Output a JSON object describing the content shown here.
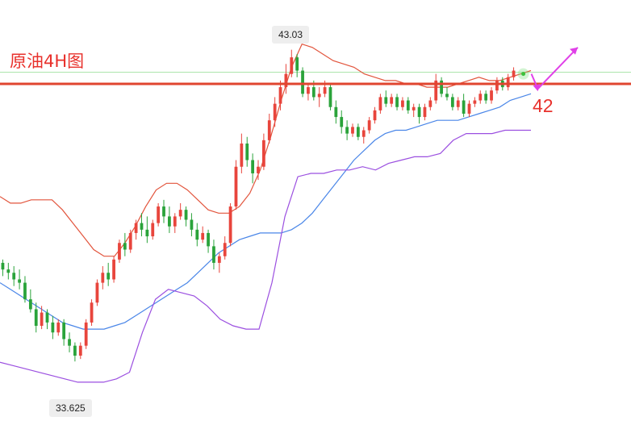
{
  "chart_data": {
    "type": "candlestick",
    "title": "原油4H图",
    "ylim": [
      32.9,
      43.8
    ],
    "high_label": "43.03",
    "low_label": "33.625",
    "resistance": {
      "value": 42.0,
      "label": "42"
    },
    "guide_line": 42.35,
    "colors": {
      "up": "#e8453c",
      "down": "#2aa33a",
      "mid_band": "#4a86e8",
      "upper_band": "#e2543c",
      "lower_band": "#9b4fe0",
      "resistance": "#e0452f",
      "arrow": "#e040e8",
      "guide": "#a6e3a6"
    },
    "candles": [
      [
        36.6,
        36.7,
        36.2,
        36.4
      ],
      [
        36.4,
        36.6,
        36.1,
        36.3
      ],
      [
        36.3,
        36.5,
        35.9,
        36.1
      ],
      [
        36.1,
        36.4,
        35.8,
        36.0
      ],
      [
        36.0,
        36.2,
        35.4,
        35.5
      ],
      [
        35.5,
        35.8,
        35.1,
        35.2
      ],
      [
        35.2,
        35.4,
        34.5,
        34.7
      ],
      [
        34.7,
        35.3,
        34.6,
        35.1
      ],
      [
        35.1,
        35.2,
        34.6,
        34.8
      ],
      [
        34.8,
        35.0,
        34.3,
        34.5
      ],
      [
        34.5,
        34.9,
        34.4,
        34.8
      ],
      [
        34.8,
        34.9,
        34.1,
        34.3
      ],
      [
        34.3,
        34.5,
        33.9,
        34.1
      ],
      [
        34.1,
        34.2,
        33.625,
        33.8
      ],
      [
        33.8,
        34.2,
        33.7,
        34.1
      ],
      [
        34.1,
        34.9,
        34.0,
        34.8
      ],
      [
        34.8,
        35.5,
        34.7,
        35.4
      ],
      [
        35.4,
        36.1,
        35.3,
        36.0
      ],
      [
        36.0,
        36.5,
        35.8,
        36.3
      ],
      [
        36.3,
        36.6,
        35.9,
        36.1
      ],
      [
        36.1,
        36.8,
        36.0,
        36.7
      ],
      [
        36.7,
        37.3,
        36.6,
        37.2
      ],
      [
        37.2,
        37.5,
        36.8,
        37.0
      ],
      [
        37.0,
        37.6,
        36.9,
        37.5
      ],
      [
        37.5,
        37.9,
        37.3,
        37.8
      ],
      [
        37.8,
        38.1,
        37.4,
        37.6
      ],
      [
        37.6,
        38.0,
        37.2,
        37.4
      ],
      [
        37.4,
        37.9,
        37.3,
        37.8
      ],
      [
        37.8,
        38.4,
        37.7,
        38.3
      ],
      [
        38.3,
        38.5,
        37.8,
        38.0
      ],
      [
        38.0,
        38.3,
        37.5,
        37.7
      ],
      [
        37.7,
        38.1,
        37.5,
        38.0
      ],
      [
        38.0,
        38.4,
        37.9,
        38.2
      ],
      [
        38.2,
        38.3,
        37.7,
        37.9
      ],
      [
        37.9,
        38.1,
        37.4,
        37.6
      ],
      [
        37.6,
        37.8,
        37.1,
        37.3
      ],
      [
        37.3,
        37.7,
        37.2,
        37.5
      ],
      [
        37.5,
        37.6,
        36.9,
        37.1
      ],
      [
        37.1,
        37.3,
        36.4,
        36.6
      ],
      [
        36.6,
        36.9,
        36.3,
        36.8
      ],
      [
        36.8,
        37.4,
        36.7,
        37.2
      ],
      [
        37.2,
        38.4,
        37.1,
        38.3
      ],
      [
        38.3,
        39.7,
        38.2,
        39.5
      ],
      [
        39.5,
        40.5,
        39.3,
        40.2
      ],
      [
        40.2,
        40.4,
        39.5,
        39.7
      ],
      [
        39.7,
        39.9,
        39.0,
        39.3
      ],
      [
        39.3,
        39.7,
        39.1,
        39.5
      ],
      [
        39.5,
        40.5,
        39.4,
        40.3
      ],
      [
        40.3,
        41.1,
        40.2,
        40.9
      ],
      [
        40.9,
        41.6,
        40.7,
        41.4
      ],
      [
        41.4,
        42.1,
        41.2,
        41.9
      ],
      [
        41.9,
        42.6,
        41.7,
        42.3
      ],
      [
        42.3,
        43.03,
        42.2,
        42.8
      ],
      [
        42.8,
        42.9,
        42.2,
        42.4
      ],
      [
        42.4,
        42.5,
        41.6,
        41.7
      ],
      [
        41.7,
        42.0,
        41.5,
        41.9
      ],
      [
        41.9,
        42.1,
        41.5,
        41.6
      ],
      [
        41.6,
        41.9,
        41.3,
        41.7
      ],
      [
        41.7,
        42.1,
        41.6,
        41.9
      ],
      [
        41.9,
        42.0,
        41.2,
        41.3
      ],
      [
        41.3,
        41.5,
        40.8,
        41.0
      ],
      [
        41.0,
        41.2,
        40.5,
        40.7
      ],
      [
        40.7,
        40.9,
        40.3,
        40.5
      ],
      [
        40.5,
        40.8,
        40.4,
        40.7
      ],
      [
        40.7,
        40.8,
        40.3,
        40.4
      ],
      [
        40.4,
        40.7,
        40.2,
        40.6
      ],
      [
        40.6,
        41.0,
        40.5,
        40.9
      ],
      [
        40.9,
        41.3,
        40.8,
        41.2
      ],
      [
        41.2,
        41.7,
        41.1,
        41.6
      ],
      [
        41.6,
        41.8,
        41.3,
        41.4
      ],
      [
        41.4,
        41.7,
        41.3,
        41.6
      ],
      [
        41.6,
        41.7,
        41.2,
        41.3
      ],
      [
        41.3,
        41.6,
        41.2,
        41.5
      ],
      [
        41.5,
        41.6,
        41.1,
        41.2
      ],
      [
        41.2,
        41.4,
        41.0,
        41.3
      ],
      [
        41.3,
        41.4,
        40.8,
        41.0
      ],
      [
        41.0,
        41.4,
        40.9,
        41.3
      ],
      [
        41.3,
        41.6,
        41.2,
        41.5
      ],
      [
        41.5,
        42.3,
        41.4,
        42.1
      ],
      [
        42.1,
        42.2,
        41.6,
        41.7
      ],
      [
        41.7,
        41.9,
        41.5,
        41.6
      ],
      [
        41.6,
        41.7,
        41.2,
        41.3
      ],
      [
        41.3,
        41.6,
        41.2,
        41.5
      ],
      [
        41.5,
        41.7,
        41.0,
        41.1
      ],
      [
        41.1,
        41.5,
        41.0,
        41.4
      ],
      [
        41.4,
        41.6,
        41.3,
        41.5
      ],
      [
        41.5,
        41.8,
        41.4,
        41.7
      ],
      [
        41.7,
        41.8,
        41.4,
        41.5
      ],
      [
        41.5,
        41.9,
        41.4,
        41.8
      ],
      [
        41.8,
        42.2,
        41.7,
        42.1
      ],
      [
        42.1,
        42.2,
        41.8,
        41.9
      ],
      [
        41.9,
        42.3,
        41.8,
        42.2
      ],
      [
        42.2,
        42.5,
        42.1,
        42.4
      ]
    ],
    "middle_band": [
      36.0,
      35.8,
      35.6,
      35.4,
      35.2,
      35.0,
      34.8,
      34.7,
      34.6,
      34.6,
      34.6,
      34.7,
      34.8,
      35.0,
      35.2,
      35.4,
      35.6,
      35.8,
      36.0,
      36.3,
      36.6,
      36.9,
      37.1,
      37.3,
      37.4,
      37.5,
      37.5,
      37.5,
      37.6,
      37.8,
      38.1,
      38.5,
      38.9,
      39.3,
      39.7,
      40.0,
      40.3,
      40.5,
      40.6,
      40.6,
      40.7,
      40.8,
      40.9,
      40.9,
      40.9,
      41.0,
      41.1,
      41.2,
      41.3,
      41.5,
      41.6,
      41.7
    ],
    "upper_band": [
      38.6,
      38.4,
      38.4,
      38.5,
      38.5,
      38.5,
      38.2,
      37.8,
      37.4,
      37.0,
      36.8,
      36.8,
      37.2,
      37.7,
      38.3,
      38.8,
      39.0,
      39.0,
      38.8,
      38.5,
      38.2,
      38.1,
      38.1,
      38.3,
      38.7,
      39.4,
      40.4,
      41.5,
      42.5,
      43.2,
      43.1,
      42.9,
      42.7,
      42.6,
      42.5,
      42.3,
      42.2,
      42.1,
      42.1,
      42.0,
      42.0,
      41.9,
      41.9,
      41.9,
      42.0,
      42.1,
      42.2,
      42.1,
      42.1,
      42.2,
      42.3,
      42.4
    ],
    "lower_band": [
      33.6,
      33.5,
      33.4,
      33.3,
      33.2,
      33.1,
      33.0,
      33.0,
      33.0,
      33.1,
      33.3,
      34.5,
      35.5,
      35.8,
      35.7,
      35.6,
      35.3,
      34.9,
      34.7,
      34.6,
      34.6,
      36.0,
      38.0,
      39.2,
      39.3,
      39.3,
      39.4,
      39.4,
      39.5,
      39.4,
      39.6,
      39.7,
      39.8,
      39.8,
      39.9,
      40.3,
      40.5,
      40.5,
      40.5,
      40.6,
      40.6,
      40.6
    ]
  }
}
